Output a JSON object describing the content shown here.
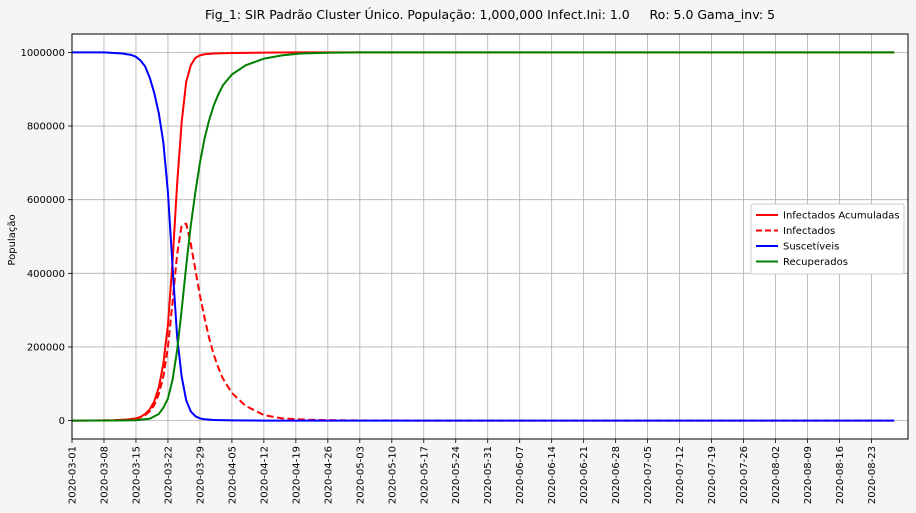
{
  "chart_data": {
    "type": "line",
    "title": "Fig_1: SIR Padrão Cluster Único. População: 1,000,000 Infect.Ini: 1.0     Ro: 5.0 Gama_inv: 5",
    "xlabel": "",
    "ylabel": "População",
    "xlim": [
      "2020-03-01",
      "2020-08-31"
    ],
    "ylim": [
      -50000,
      1050000
    ],
    "grid": true,
    "legend_position": "center-right",
    "y_ticks": [
      "0",
      "200000",
      "400000",
      "600000",
      "800000",
      "1000000"
    ],
    "x_ticks": [
      "2020-03-01",
      "2020-03-08",
      "2020-03-15",
      "2020-03-22",
      "2020-03-29",
      "2020-04-05",
      "2020-04-12",
      "2020-04-19",
      "2020-04-26",
      "2020-05-03",
      "2020-05-10",
      "2020-05-17",
      "2020-05-24",
      "2020-05-31",
      "2020-06-07",
      "2020-06-14",
      "2020-06-21",
      "2020-06-28",
      "2020-07-05",
      "2020-07-12",
      "2020-07-19",
      "2020-07-26",
      "2020-08-02",
      "2020-08-09",
      "2020-08-16",
      "2020-08-23"
    ],
    "series": [
      {
        "name": "Infectados Acumuladas",
        "color": "#ff0000",
        "dash": "solid",
        "x": [
          "2020-03-01",
          "2020-03-05",
          "2020-03-10",
          "2020-03-13",
          "2020-03-15",
          "2020-03-16",
          "2020-03-17",
          "2020-03-18",
          "2020-03-19",
          "2020-03-20",
          "2020-03-21",
          "2020-03-22",
          "2020-03-23",
          "2020-03-24",
          "2020-03-25",
          "2020-03-26",
          "2020-03-27",
          "2020-03-28",
          "2020-03-29",
          "2020-03-30",
          "2020-04-01",
          "2020-04-05",
          "2020-04-12",
          "2020-04-19",
          "2020-08-28"
        ],
        "values": [
          0,
          150,
          1000,
          3000,
          6000,
          10000,
          18000,
          30000,
          52000,
          90000,
          155000,
          260000,
          430000,
          640000,
          810000,
          920000,
          965000,
          985000,
          992000,
          995000,
          997000,
          998500,
          999500,
          1000000,
          1000000
        ]
      },
      {
        "name": "Infectados",
        "color": "#ff0000",
        "dash": "dashed",
        "x": [
          "2020-03-01",
          "2020-03-05",
          "2020-03-10",
          "2020-03-13",
          "2020-03-15",
          "2020-03-16",
          "2020-03-17",
          "2020-03-18",
          "2020-03-19",
          "2020-03-20",
          "2020-03-21",
          "2020-03-22",
          "2020-03-23",
          "2020-03-24",
          "2020-03-25",
          "2020-03-26",
          "2020-03-27",
          "2020-03-28",
          "2020-03-29",
          "2020-03-30",
          "2020-03-31",
          "2020-04-01",
          "2020-04-02",
          "2020-04-03",
          "2020-04-05",
          "2020-04-08",
          "2020-04-12",
          "2020-04-16",
          "2020-04-22",
          "2020-05-01",
          "2020-05-15",
          "2020-08-28"
        ],
        "values": [
          0,
          120,
          800,
          2500,
          5000,
          8500,
          15000,
          25000,
          42000,
          72000,
          120000,
          200000,
          320000,
          450000,
          530000,
          535000,
          480000,
          410000,
          340000,
          280000,
          225000,
          180000,
          145000,
          115000,
          75000,
          40000,
          15000,
          6000,
          2000,
          500,
          0,
          0
        ]
      },
      {
        "name": "Suscetíveis",
        "color": "#0000ff",
        "dash": "solid",
        "x": [
          "2020-03-01",
          "2020-03-08",
          "2020-03-12",
          "2020-03-14",
          "2020-03-15",
          "2020-03-16",
          "2020-03-17",
          "2020-03-18",
          "2020-03-19",
          "2020-03-20",
          "2020-03-21",
          "2020-03-22",
          "2020-03-23",
          "2020-03-24",
          "2020-03-25",
          "2020-03-26",
          "2020-03-27",
          "2020-03-28",
          "2020-03-29",
          "2020-03-30",
          "2020-04-01",
          "2020-04-05",
          "2020-04-12",
          "2020-08-28"
        ],
        "values": [
          1000000,
          1000000,
          997000,
          993000,
          988000,
          978000,
          962000,
          932000,
          890000,
          835000,
          755000,
          620000,
          420000,
          230000,
          120000,
          55000,
          25000,
          12000,
          6000,
          3500,
          1500,
          500,
          0,
          0
        ]
      },
      {
        "name": "Recuperados",
        "color": "#008000",
        "dash": "solid",
        "x": [
          "2020-03-01",
          "2020-03-10",
          "2020-03-15",
          "2020-03-18",
          "2020-03-20",
          "2020-03-21",
          "2020-03-22",
          "2020-03-23",
          "2020-03-24",
          "2020-03-25",
          "2020-03-26",
          "2020-03-27",
          "2020-03-28",
          "2020-03-29",
          "2020-03-30",
          "2020-03-31",
          "2020-04-01",
          "2020-04-02",
          "2020-04-03",
          "2020-04-05",
          "2020-04-08",
          "2020-04-12",
          "2020-04-16",
          "2020-04-20",
          "2020-04-26",
          "2020-05-03",
          "2020-08-28"
        ],
        "values": [
          0,
          200,
          1000,
          5000,
          18000,
          35000,
          60000,
          110000,
          190000,
          300000,
          420000,
          530000,
          620000,
          700000,
          765000,
          815000,
          855000,
          885000,
          910000,
          940000,
          965000,
          983000,
          992000,
          997000,
          999000,
          1000000,
          1000000
        ]
      }
    ]
  }
}
